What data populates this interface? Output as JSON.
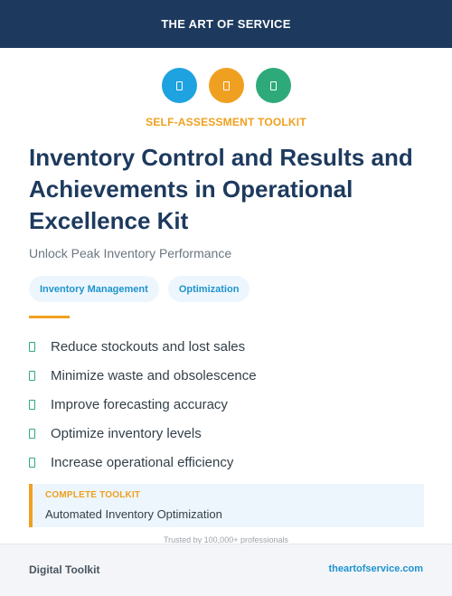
{
  "header": {
    "brand": "THE ART OF SERVICE"
  },
  "icons": [
    {
      "name": "box-icon",
      "color": "#1fa2e0"
    },
    {
      "name": "chart-icon",
      "color": "#f0a020"
    },
    {
      "name": "gear-icon",
      "color": "#2eaa7a"
    }
  ],
  "kicker": "SELF-ASSESSMENT TOOLKIT",
  "title": "Inventory Control and Results and Achievements in Operational Excellence Kit",
  "subtitle": "Unlock Peak Inventory Performance",
  "tags": [
    "Inventory Management",
    "Optimization"
  ],
  "benefits": [
    "Reduce stockouts and lost sales",
    "Minimize waste and obsolescence",
    "Improve forecasting accuracy",
    "Optimize inventory levels",
    "Increase operational efficiency"
  ],
  "callout": {
    "label": "COMPLETE TOOLKIT",
    "text": "Automated Inventory Optimization"
  },
  "trust_line": "Trusted by 100,000+ professionals",
  "footer": {
    "left": "Digital Toolkit",
    "right": "theartofservice.com"
  },
  "colors": {
    "navy": "#1d3a5e",
    "accent_orange": "#f0a020",
    "accent_blue": "#1e93cf",
    "accent_green": "#2eaa7a"
  }
}
